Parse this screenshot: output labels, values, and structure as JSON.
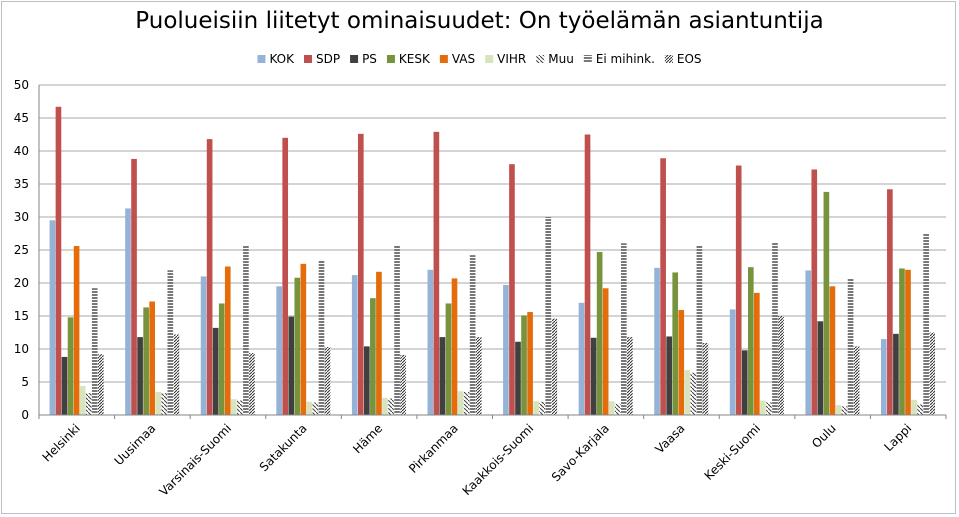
{
  "chart_data": {
    "type": "bar",
    "title": "Puolueisiin liitetyt ominaisuudet: On työelämän asiantuntija",
    "xlabel": "",
    "ylabel": "",
    "ylim": [
      0,
      50
    ],
    "yticks": [
      0,
      5,
      10,
      15,
      20,
      25,
      30,
      35,
      40,
      45,
      50
    ],
    "grid": true,
    "legend_position": "top",
    "categories": [
      "Helsinki",
      "Uusimaa",
      "Varsinais-Suomi",
      "Satakunta",
      "Häme",
      "Pirkanmaa",
      "Kaakkois-Suomi",
      "Savo-Karjala",
      "Vaasa",
      "Keski-Suomi",
      "Oulu",
      "Lappi"
    ],
    "series": [
      {
        "name": "KOK",
        "color": "#95b3d7",
        "pattern": "solid",
        "values": [
          29.5,
          31.3,
          21.0,
          19.5,
          21.2,
          22.0,
          19.7,
          17.0,
          22.3,
          16.0,
          21.9,
          11.5
        ]
      },
      {
        "name": "SDP",
        "color": "#c0504d",
        "pattern": "solid",
        "values": [
          46.7,
          38.8,
          41.8,
          42.0,
          42.6,
          42.9,
          38.0,
          42.5,
          38.9,
          37.8,
          37.2,
          34.2
        ]
      },
      {
        "name": "PS",
        "color": "#404040",
        "pattern": "solid",
        "values": [
          8.8,
          11.8,
          13.2,
          14.9,
          10.4,
          11.8,
          11.1,
          11.7,
          11.9,
          9.8,
          14.2,
          12.3
        ]
      },
      {
        "name": "KESK",
        "color": "#77933c",
        "pattern": "solid",
        "values": [
          14.8,
          16.3,
          16.9,
          20.8,
          17.7,
          16.9,
          15.1,
          24.7,
          21.6,
          22.4,
          33.8,
          22.2
        ]
      },
      {
        "name": "VAS",
        "color": "#e46c0a",
        "pattern": "solid",
        "values": [
          25.6,
          17.2,
          22.5,
          22.9,
          21.7,
          20.7,
          15.6,
          19.2,
          15.9,
          18.5,
          19.5,
          22.0
        ]
      },
      {
        "name": "VIHR",
        "color": "#d7e4bd",
        "pattern": "solid",
        "values": [
          4.4,
          3.5,
          2.4,
          2.0,
          2.6,
          3.6,
          2.1,
          2.1,
          6.8,
          2.2,
          1.5,
          2.3
        ]
      },
      {
        "name": "Muu",
        "color": "#404040",
        "pattern": "diag-sparse",
        "values": [
          3.3,
          3.3,
          2.2,
          1.9,
          2.5,
          3.5,
          2.0,
          1.7,
          6.4,
          1.9,
          1.3,
          1.6
        ]
      },
      {
        "name": "Ei mihink.",
        "color": "#404040",
        "pattern": "horizontal",
        "values": [
          19.2,
          21.9,
          25.6,
          23.5,
          25.7,
          24.2,
          30.0,
          26.0,
          25.7,
          26.1,
          20.6,
          27.5
        ]
      },
      {
        "name": "EOS",
        "color": "#404040",
        "pattern": "diag-dense",
        "values": [
          9.2,
          12.2,
          9.4,
          10.3,
          9.1,
          11.8,
          14.6,
          11.8,
          10.9,
          15.0,
          10.4,
          12.5
        ]
      }
    ]
  }
}
